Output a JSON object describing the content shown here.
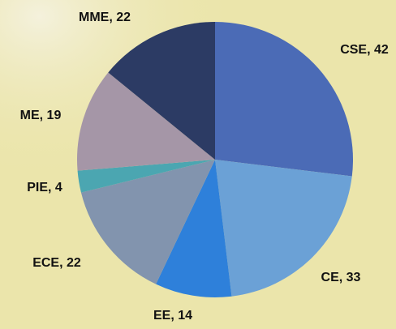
{
  "chart_data": {
    "type": "pie",
    "labels": [
      "CSE, 42",
      "CE, 33",
      "EE, 14",
      "ECE, 22",
      "PIE, 4",
      "ME, 19",
      "MME, 22"
    ],
    "values": [
      42,
      33,
      14,
      22,
      4,
      19,
      22
    ],
    "colors": [
      "#4b6bb6",
      "#6ba1d6",
      "#2e80da",
      "#8294ae",
      "#4ba6b1",
      "#a596a7",
      "#2c3b64"
    ]
  }
}
